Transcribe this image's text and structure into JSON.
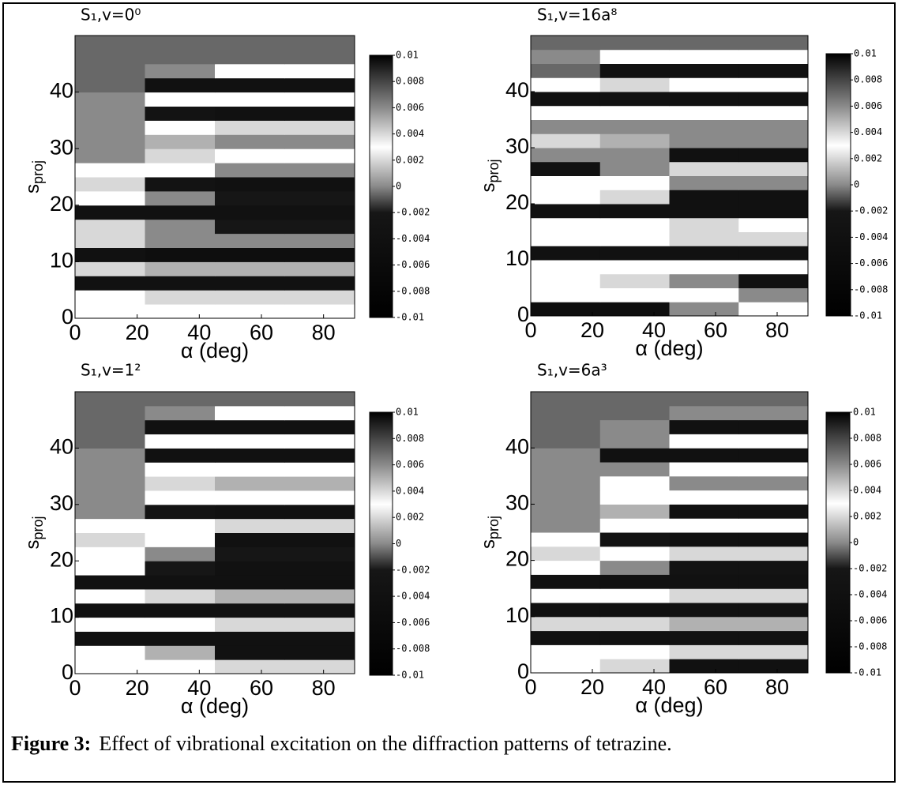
{
  "chart_data": [
    {
      "type": "heatmap",
      "title": "S₁,v=0⁰",
      "xlabel": "α (deg)",
      "ylabel": {
        "main": "s",
        "sub": "proj"
      },
      "xlim": [
        0,
        90
      ],
      "ylim": [
        0,
        50
      ],
      "xticks": [
        0,
        20,
        40,
        60,
        80
      ],
      "yticks": [
        0,
        10,
        20,
        30,
        40
      ],
      "xedges": [
        0,
        22.5,
        45,
        67.5,
        90
      ],
      "yedges": [
        0,
        2.5,
        5,
        7.5,
        10,
        12.5,
        15,
        17.5,
        20,
        22.5,
        25,
        27.5,
        30,
        32.5,
        35,
        37.5,
        40,
        42.5,
        45,
        47.5,
        50
      ],
      "z": [
        [
          0.003,
          0.003,
          0.003,
          0.003
        ],
        [
          0.003,
          0.002,
          0.002,
          0.002
        ],
        [
          -0.004,
          -0.004,
          -0.004,
          -0.004
        ],
        [
          0.002,
          0.001,
          0.001,
          0.001
        ],
        [
          -0.004,
          -0.005,
          -0.005,
          -0.005
        ],
        [
          0.002,
          0,
          0,
          0
        ],
        [
          0.002,
          0,
          -0.002,
          -0.002
        ],
        [
          -0.004,
          -0.004,
          -0.004,
          -0.004
        ],
        [
          0.003,
          0,
          -0.002,
          -0.002
        ],
        [
          0.002,
          -0.003,
          -0.004,
          -0.004
        ],
        [
          0.003,
          0.003,
          0,
          0
        ],
        [
          0,
          0.002,
          0.003,
          0.003
        ],
        [
          0.006,
          0.001,
          0,
          0
        ],
        [
          0.006,
          0.003,
          0.002,
          0.002
        ],
        [
          0.006,
          -0.003,
          -0.004,
          -0.004
        ],
        [
          0.006,
          0.003,
          0.003,
          0.003
        ],
        [
          0.007,
          -0.004,
          -0.004,
          -0.004
        ],
        [
          0.007,
          0.006,
          0.003,
          0.003
        ],
        [
          0.007,
          0.007,
          0.007,
          0.007
        ],
        [
          0.007,
          0.007,
          0.007,
          0.007
        ]
      ],
      "colorbar": {
        "lim": [
          -0.01,
          0.01
        ],
        "ticks": [
          0.01,
          0.008,
          0.006,
          0.004,
          0.002,
          0,
          -0.002,
          -0.004,
          -0.006,
          -0.008,
          -0.01
        ]
      }
    },
    {
      "type": "heatmap",
      "title": "S₁,v=16a⁸",
      "xlabel": "α (deg)",
      "ylabel": {
        "main": "s",
        "sub": "proj"
      },
      "xlim": [
        0,
        90
      ],
      "ylim": [
        0,
        50
      ],
      "xticks": [
        0,
        20,
        40,
        60,
        80
      ],
      "yticks": [
        0,
        10,
        20,
        30,
        40
      ],
      "xedges": [
        0,
        22.5,
        45,
        67.5,
        90
      ],
      "yedges": [
        0,
        2.5,
        5,
        7.5,
        10,
        12.5,
        15,
        17.5,
        20,
        22.5,
        25,
        27.5,
        30,
        32.5,
        35,
        37.5,
        40,
        42.5,
        45,
        47.5,
        50
      ],
      "z": [
        [
          -0.005,
          -0.005,
          0,
          0.003
        ],
        [
          0.003,
          0.003,
          0.003,
          0
        ],
        [
          0.003,
          0.002,
          0,
          -0.004
        ],
        [
          0.003,
          0.003,
          0.003,
          0.003
        ],
        [
          -0.004,
          -0.004,
          -0.004,
          -0.004
        ],
        [
          0.003,
          0.003,
          0.002,
          0.002
        ],
        [
          0.003,
          0.003,
          0.002,
          0.003
        ],
        [
          -0.004,
          -0.004,
          -0.004,
          -0.004
        ],
        [
          0.003,
          0.002,
          -0.004,
          -0.004
        ],
        [
          0.003,
          0.003,
          0,
          0
        ],
        [
          -0.004,
          0,
          0.002,
          0.002
        ],
        [
          0.006,
          0,
          -0.004,
          -0.004
        ],
        [
          0.002,
          0.001,
          0,
          0
        ],
        [
          0.006,
          0.006,
          0.006,
          0.006
        ],
        [
          0.003,
          0.003,
          0.003,
          0.003
        ],
        [
          -0.004,
          -0.004,
          -0.004,
          -0.004
        ],
        [
          0.003,
          0.002,
          0.003,
          0.003
        ],
        [
          0.007,
          -0.004,
          -0.004,
          -0.004
        ],
        [
          0.006,
          0.003,
          0.003,
          0.003
        ],
        [
          0.007,
          0.007,
          0.007,
          0.007
        ]
      ],
      "colorbar": {
        "lim": [
          -0.01,
          0.01
        ],
        "ticks": [
          0.01,
          0.008,
          0.006,
          0.004,
          0.002,
          0,
          -0.002,
          -0.004,
          -0.006,
          -0.008,
          -0.01
        ]
      }
    },
    {
      "type": "heatmap",
      "title": "S₁,v=1²",
      "xlabel": "α (deg)",
      "ylabel": {
        "main": "s",
        "sub": "proj"
      },
      "xlim": [
        0,
        90
      ],
      "ylim": [
        0,
        50
      ],
      "xticks": [
        0,
        20,
        40,
        60,
        80
      ],
      "yticks": [
        0,
        10,
        20,
        30,
        40
      ],
      "xedges": [
        0,
        22.5,
        45,
        67.5,
        90
      ],
      "yedges": [
        0,
        2.5,
        5,
        7.5,
        10,
        12.5,
        15,
        17.5,
        20,
        22.5,
        25,
        27.5,
        30,
        32.5,
        35,
        37.5,
        40,
        42.5,
        45,
        47.5,
        50
      ],
      "z": [
        [
          0.003,
          0.003,
          0.002,
          0.002
        ],
        [
          0.003,
          0.001,
          -0.004,
          -0.004
        ],
        [
          -0.004,
          -0.004,
          -0.004,
          -0.004
        ],
        [
          0.003,
          0.003,
          0.002,
          0.002
        ],
        [
          -0.004,
          -0.004,
          -0.004,
          -0.004
        ],
        [
          0.003,
          0.002,
          0.001,
          0.001
        ],
        [
          -0.004,
          -0.004,
          -0.004,
          -0.004
        ],
        [
          0.003,
          -0.002,
          -0.004,
          -0.004
        ],
        [
          0.003,
          0,
          -0.002,
          -0.002
        ],
        [
          0.002,
          0.003,
          -0.004,
          -0.004
        ],
        [
          0.003,
          0.003,
          0.002,
          0.002
        ],
        [
          0.006,
          -0.003,
          -0.004,
          -0.004
        ],
        [
          0.006,
          0.003,
          0.003,
          0.003
        ],
        [
          0.006,
          0.002,
          0.001,
          0.001
        ],
        [
          0.006,
          0.003,
          0.003,
          0.003
        ],
        [
          0.006,
          -0.004,
          -0.004,
          -0.004
        ],
        [
          0.007,
          0.003,
          0.003,
          0.003
        ],
        [
          0.007,
          -0.004,
          -0.004,
          -0.004
        ],
        [
          0.007,
          0.006,
          0.003,
          0.003
        ],
        [
          0.007,
          0.007,
          0.007,
          0.007
        ]
      ],
      "colorbar": {
        "lim": [
          -0.01,
          0.01
        ],
        "ticks": [
          0.01,
          0.008,
          0.006,
          0.004,
          0.002,
          0,
          -0.002,
          -0.004,
          -0.006,
          -0.008,
          -0.01
        ]
      }
    },
    {
      "type": "heatmap",
      "title": "S₁,v=6a³",
      "xlabel": "α (deg)",
      "ylabel": {
        "main": "s",
        "sub": "proj"
      },
      "xlim": [
        0,
        90
      ],
      "ylim": [
        0,
        50
      ],
      "xticks": [
        0,
        20,
        40,
        60,
        80
      ],
      "yticks": [
        0,
        10,
        20,
        30,
        40
      ],
      "xedges": [
        0,
        22.5,
        45,
        67.5,
        90
      ],
      "yedges": [
        0,
        2.5,
        5,
        7.5,
        10,
        12.5,
        15,
        17.5,
        20,
        22.5,
        25,
        27.5,
        30,
        32.5,
        35,
        37.5,
        40,
        42.5,
        45,
        47.5,
        50
      ],
      "z": [
        [
          0.003,
          0.002,
          -0.004,
          -0.004
        ],
        [
          0.003,
          0.003,
          0.002,
          0.002
        ],
        [
          -0.004,
          -0.004,
          -0.004,
          -0.004
        ],
        [
          0.002,
          0.002,
          0.001,
          0.001
        ],
        [
          -0.004,
          -0.004,
          -0.004,
          -0.004
        ],
        [
          0.003,
          0.003,
          0.002,
          0.002
        ],
        [
          -0.004,
          -0.004,
          -0.004,
          -0.004
        ],
        [
          0.003,
          0,
          -0.003,
          -0.003
        ],
        [
          0.002,
          0.003,
          0.002,
          0.002
        ],
        [
          0.003,
          -0.003,
          -0.004,
          -0.004
        ],
        [
          0.006,
          0.003,
          0.003,
          0.003
        ],
        [
          0.006,
          0.001,
          -0.004,
          -0.004
        ],
        [
          0.006,
          0.003,
          0.003,
          0.003
        ],
        [
          0.006,
          0.003,
          0,
          0
        ],
        [
          0.006,
          0.006,
          0.003,
          0.003
        ],
        [
          0.006,
          -0.004,
          -0.004,
          -0.004
        ],
        [
          0.007,
          0.006,
          0.003,
          0.003
        ],
        [
          0.007,
          0.006,
          -0.004,
          -0.004
        ],
        [
          0.007,
          0.007,
          0.006,
          0.006
        ],
        [
          0.007,
          0.007,
          0.007,
          0.007
        ]
      ],
      "colorbar": {
        "lim": [
          -0.01,
          0.01
        ],
        "ticks": [
          0.01,
          0.008,
          0.006,
          0.004,
          0.002,
          0,
          -0.002,
          -0.004,
          -0.006,
          -0.008,
          -0.01
        ]
      }
    }
  ],
  "colormap": {
    "values": [
      -0.01,
      -0.002,
      0,
      0.003,
      0.006,
      0.01
    ],
    "colors": [
      "#000000",
      "#161616",
      "#8a8a8a",
      "#ffffff",
      "#8a8a8a",
      "#000000"
    ]
  },
  "caption": {
    "label": "Figure 3:",
    "text": "Effect of vibrational excitation on the diffraction patterns of tetrazine."
  }
}
